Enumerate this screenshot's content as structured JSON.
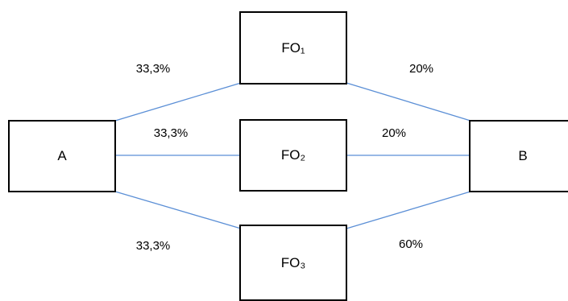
{
  "nodes": {
    "a": "A",
    "b": "B",
    "fo1": "FO₁",
    "fo2": "FO₂",
    "fo3": "FO₃"
  },
  "edges": {
    "a_fo1": "33,3%",
    "a_fo2": "33,3%",
    "a_fo3": "33,3%",
    "fo1_b": "20%",
    "fo2_b": "20%",
    "fo3_b": "60%"
  },
  "colors": {
    "edge": "#5b8fd6",
    "border": "#000000"
  }
}
